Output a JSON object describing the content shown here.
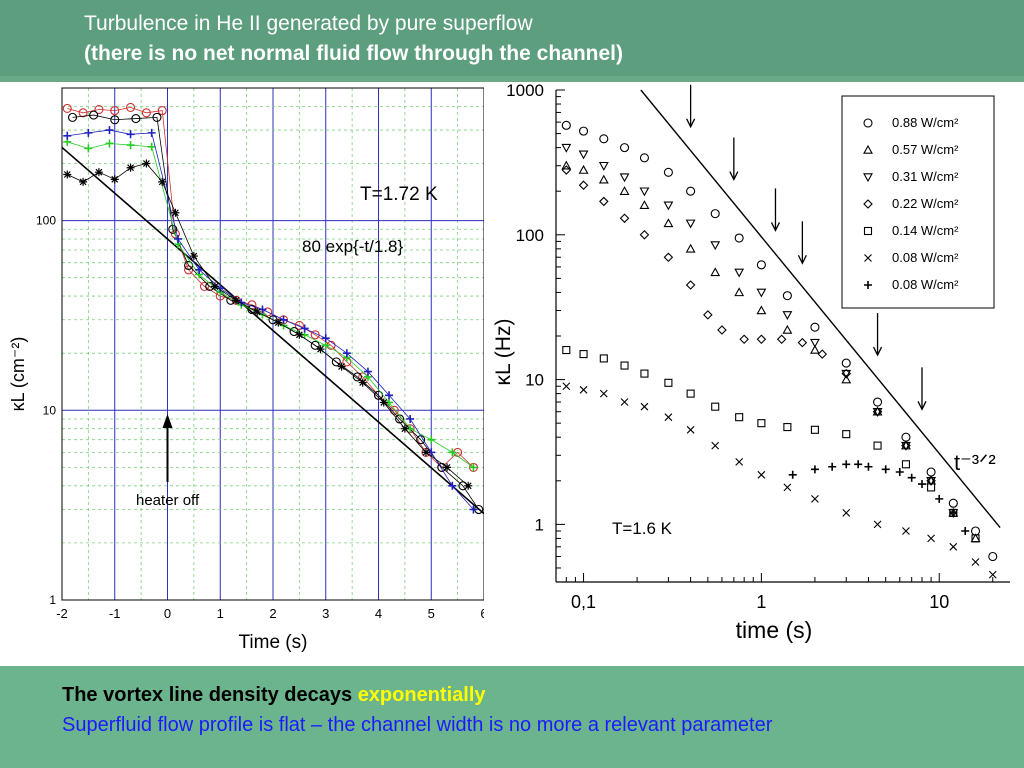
{
  "header": {
    "title_line1": "Turbulence in He II generated by pure superflow",
    "title_line2": "(there is no net normal fluid flow through the channel)"
  },
  "footer": {
    "line1_prefix": "The vortex line density decays ",
    "line1_highlight": "exponentially",
    "line2": "Superfluid flow profile is flat – the channel width is no more a relevant parameter"
  },
  "colors": {
    "header_bg": "#5c9e7e",
    "footer_bg": "#6cb48e",
    "highlight": "#ffff00",
    "blue_text": "#1a1aff"
  },
  "chart_data": [
    {
      "type": "scatter",
      "xlabel": "Time (s)",
      "ylabel": "κL (cm⁻²)",
      "xlim": [
        -2,
        6
      ],
      "ylim": [
        1,
        500
      ],
      "yscale": "log",
      "x_ticks": [
        "-2",
        "-1",
        "0",
        "1",
        "2",
        "3",
        "4",
        "5",
        "6"
      ],
      "y_ticks": [
        "1",
        "10",
        "100"
      ],
      "grid": true,
      "annotations": [
        "T=1.72 K",
        "80 exp{-t/1.8}",
        "heater off"
      ],
      "fit": {
        "label": "80 exp{-t/1.8}",
        "amplitude": 80,
        "tau": 1.8
      },
      "series": [
        {
          "marker": "circle-red",
          "color": "#d03030",
          "x": [
            -1.9,
            -1.6,
            -1.3,
            -1.0,
            -0.7,
            -0.4,
            -0.1,
            0.15,
            0.4,
            0.7,
            1.0,
            1.3,
            1.6,
            1.9,
            2.2,
            2.5,
            2.8,
            3.1,
            3.4,
            3.7,
            4.0,
            4.3,
            4.6,
            4.9,
            5.2,
            5.5,
            5.8
          ],
          "y": [
            390,
            370,
            385,
            380,
            395,
            370,
            380,
            85,
            55,
            45,
            40,
            38,
            36,
            33,
            30,
            28,
            25,
            22,
            18,
            15,
            12,
            10,
            8,
            6,
            5,
            6,
            5
          ]
        },
        {
          "marker": "circle-black",
          "color": "#000000",
          "x": [
            -1.8,
            -1.4,
            -1.0,
            -0.6,
            -0.2,
            0.1,
            0.4,
            0.8,
            1.2,
            1.6,
            2.0,
            2.4,
            2.8,
            3.2,
            3.6,
            4.0,
            4.4,
            4.8,
            5.2,
            5.6,
            5.9
          ],
          "y": [
            350,
            360,
            340,
            345,
            350,
            90,
            58,
            45,
            38,
            34,
            30,
            26,
            22,
            18,
            15,
            12,
            9,
            7,
            5,
            4,
            3
          ]
        },
        {
          "marker": "plus-green",
          "color": "#22cc22",
          "x": [
            -1.9,
            -1.5,
            -1.1,
            -0.7,
            -0.3,
            0.2,
            0.6,
            1.0,
            1.4,
            1.8,
            2.2,
            2.6,
            3.0,
            3.4,
            3.8,
            4.2,
            4.6,
            5.0,
            5.4,
            5.8
          ],
          "y": [
            260,
            240,
            255,
            250,
            245,
            75,
            52,
            42,
            36,
            32,
            28,
            25,
            22,
            19,
            15,
            11,
            8,
            7,
            6,
            5
          ]
        },
        {
          "marker": "plus-blue",
          "color": "#2020c0",
          "x": [
            -1.9,
            -1.5,
            -1.1,
            -0.7,
            -0.3,
            0.2,
            0.6,
            1.0,
            1.4,
            1.8,
            2.2,
            2.6,
            3.0,
            3.4,
            3.8,
            4.2,
            4.6,
            5.0,
            5.4,
            5.8
          ],
          "y": [
            280,
            290,
            300,
            285,
            290,
            80,
            55,
            44,
            37,
            34,
            30,
            27,
            24,
            20,
            16,
            12,
            9,
            6,
            4,
            3
          ]
        },
        {
          "marker": "asterisk-black",
          "color": "#000000",
          "x": [
            -1.9,
            -1.6,
            -1.3,
            -1.0,
            -0.7,
            -0.4,
            -0.1,
            0.15,
            0.5,
            0.9,
            1.3,
            1.7,
            2.1,
            2.5,
            2.9,
            3.3,
            3.7,
            4.1,
            4.5,
            4.9,
            5.3,
            5.7
          ],
          "y": [
            175,
            160,
            180,
            165,
            190,
            200,
            160,
            110,
            65,
            45,
            38,
            33,
            29,
            25,
            21,
            17,
            14,
            11,
            8,
            6,
            5,
            4
          ]
        }
      ]
    },
    {
      "type": "scatter",
      "xlabel": "time (s)",
      "ylabel": "κL (Hz)",
      "xlim": [
        0.07,
        25
      ],
      "ylim": [
        0.4,
        1000
      ],
      "xscale": "log",
      "yscale": "log",
      "x_ticks": [
        "0,1",
        "1",
        "10"
      ],
      "y_ticks": [
        "1",
        "10",
        "100",
        "1000"
      ],
      "grid": false,
      "legend_position": "top-right",
      "annotations": [
        "T=1.6 K",
        "t⁻³ᐟ²"
      ],
      "arrows_x": [
        0.4,
        0.7,
        1.2,
        1.7,
        4.5,
        8
      ],
      "series": [
        {
          "name": "0.88 W/cm²",
          "marker": "circle",
          "x": [
            0.08,
            0.1,
            0.13,
            0.17,
            0.22,
            0.3,
            0.4,
            0.55,
            0.75,
            1.0,
            1.4,
            2.0,
            3.0,
            4.5,
            6.5,
            9,
            12,
            16,
            20
          ],
          "y": [
            570,
            520,
            460,
            400,
            340,
            270,
            200,
            140,
            95,
            62,
            38,
            23,
            13,
            7,
            4,
            2.3,
            1.4,
            0.9,
            0.6
          ]
        },
        {
          "name": "0.57 W/cm²",
          "marker": "triangle-up",
          "x": [
            0.08,
            0.1,
            0.13,
            0.17,
            0.22,
            0.3,
            0.4,
            0.55,
            0.75,
            1.0,
            1.4,
            2.0,
            3.0,
            4.5,
            6.5,
            9,
            12,
            16
          ],
          "y": [
            300,
            280,
            240,
            200,
            160,
            120,
            80,
            55,
            40,
            30,
            22,
            16,
            10,
            6,
            3.5,
            2,
            1.2,
            0.8
          ]
        },
        {
          "name": "0.31 W/cm²",
          "marker": "triangle-down",
          "x": [
            0.08,
            0.1,
            0.13,
            0.17,
            0.22,
            0.3,
            0.4,
            0.55,
            0.75,
            1.0,
            1.4,
            2.0,
            3.0,
            4.5,
            6.5,
            9,
            12
          ],
          "y": [
            400,
            360,
            300,
            250,
            200,
            160,
            120,
            85,
            55,
            40,
            28,
            18,
            11,
            6,
            3.5,
            2,
            1.2
          ]
        },
        {
          "name": "0.22 W/cm²",
          "marker": "diamond",
          "x": [
            0.08,
            0.1,
            0.13,
            0.17,
            0.22,
            0.3,
            0.4,
            0.5,
            0.6,
            0.8,
            1.0,
            1.3,
            1.7,
            2.2,
            3.0,
            4.5,
            6.5,
            9
          ],
          "y": [
            280,
            220,
            170,
            130,
            100,
            70,
            45,
            28,
            22,
            19,
            19,
            19,
            18,
            15,
            11,
            6,
            3.5,
            2
          ]
        },
        {
          "name": "0.14 W/cm²",
          "marker": "square",
          "x": [
            0.08,
            0.1,
            0.13,
            0.17,
            0.22,
            0.3,
            0.4,
            0.55,
            0.75,
            1.0,
            1.4,
            2.0,
            3.0,
            4.5,
            6.5,
            9,
            12,
            16
          ],
          "y": [
            16,
            15,
            14,
            12.5,
            11,
            9.5,
            8,
            6.5,
            5.5,
            5,
            4.7,
            4.5,
            4.2,
            3.5,
            2.6,
            1.8,
            1.2,
            0.8
          ]
        },
        {
          "name": "0.08 W/cm²",
          "marker": "x",
          "x": [
            0.08,
            0.1,
            0.13,
            0.17,
            0.22,
            0.3,
            0.4,
            0.55,
            0.75,
            1.0,
            1.4,
            2.0,
            3.0,
            4.5,
            6.5,
            9,
            12,
            16,
            20
          ],
          "y": [
            9,
            8.5,
            8,
            7,
            6.5,
            5.5,
            4.5,
            3.5,
            2.7,
            2.2,
            1.8,
            1.5,
            1.2,
            1.0,
            0.9,
            0.8,
            0.7,
            0.55,
            0.45
          ]
        },
        {
          "name": "0.08 W/cm²",
          "marker": "plus",
          "x": [
            1.5,
            2.0,
            2.5,
            3.0,
            3.5,
            4.0,
            5.0,
            6.0,
            7.0,
            8.0,
            10,
            12,
            14
          ],
          "y": [
            2.2,
            2.4,
            2.5,
            2.6,
            2.6,
            2.5,
            2.4,
            2.3,
            2.1,
            1.9,
            1.5,
            1.2,
            0.9
          ]
        }
      ]
    }
  ]
}
